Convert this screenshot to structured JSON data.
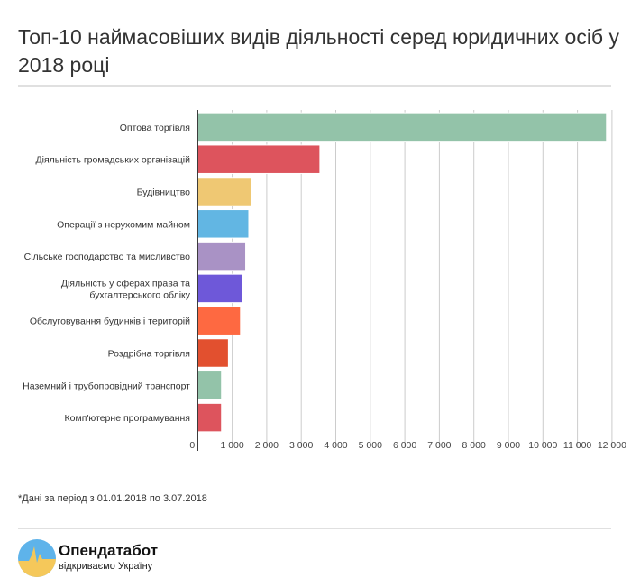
{
  "title": "Топ-10 наймасовіших видів діяльності серед юридичних осіб у 2018 році",
  "footnote": "*Дані за період з 01.01.2018 по 3.07.2018",
  "brand": {
    "name": "Опендатабот",
    "slogan": "відкриваємо Україну",
    "colors": [
      "#5eb3ea",
      "#f5c85a"
    ]
  },
  "chart_data": {
    "type": "bar",
    "orientation": "horizontal",
    "title": "Топ-10 наймасовіших видів діяльності серед юридичних осіб у 2018 році",
    "categories": [
      "Оптова торгівля",
      "Діяльність громадських організацій",
      "Будівництво",
      "Операції з нерухомим майном",
      "Сільське господарство та мисливство",
      "Діяльність у сферах права та бухгалтерського обліку",
      "Обслуговування будинків і територій",
      "Роздрібна торгівля",
      "Наземний і трубопровідний транспорт",
      "Комп'ютерне програмування"
    ],
    "values": [
      11840,
      3540,
      1560,
      1480,
      1390,
      1310,
      1240,
      890,
      690,
      690
    ],
    "colors": [
      "#93c3a9",
      "#dd545d",
      "#efc873",
      "#62b6e3",
      "#a992c5",
      "#6e58d9",
      "#fe6941",
      "#e2502f",
      "#93c3a9",
      "#dd545d"
    ],
    "xlim": [
      0,
      13000
    ],
    "xticks": [
      0,
      1000,
      2000,
      3000,
      4000,
      5000,
      6000,
      7000,
      8000,
      9000,
      10000,
      11000,
      12000
    ],
    "xtick_labels": [
      "0",
      "1 000",
      "2 000",
      "3 000",
      "4 000",
      "5 000",
      "6 000",
      "7 000",
      "8 000",
      "9 000",
      "10 000",
      "11 000",
      "12 000"
    ],
    "grid": true,
    "legend": "none"
  }
}
